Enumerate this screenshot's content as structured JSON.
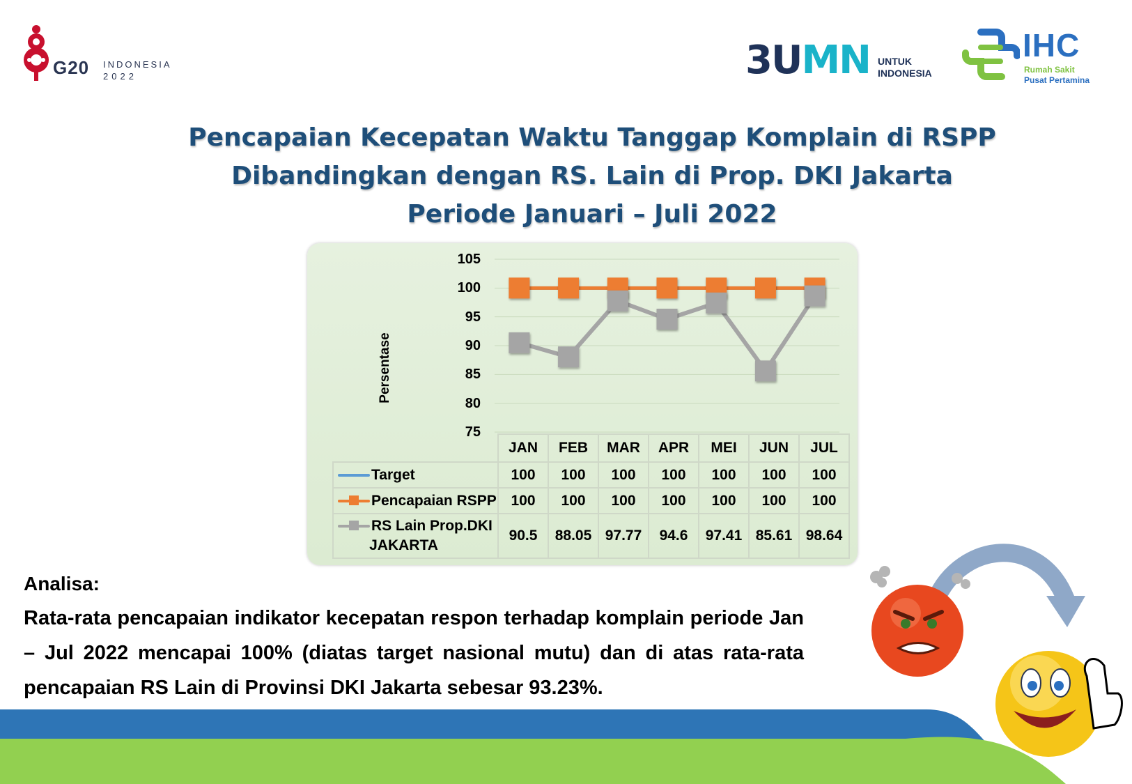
{
  "logos": {
    "g20_main": "G20",
    "g20_line1": "INDONESIA",
    "g20_line2": "2022",
    "bumn_b": "3U",
    "bumn_mn": "MN",
    "bumn_tag1": "UNTUK",
    "bumn_tag2": "INDONESIA",
    "ihc_name": "IHC",
    "ihc_sub1": "Rumah Sakit",
    "ihc_sub2": "Pusat Pertamina"
  },
  "title": {
    "line1": "Pencapaian Kecepatan Waktu Tanggap Komplain di RSPP",
    "line2": "Dibandingkan dengan RS. Lain di Prop. DKI Jakarta",
    "line3": "Periode Januari – Juli 2022"
  },
  "chart_data": {
    "type": "line",
    "title": "",
    "xlabel": "",
    "ylabel": "Persentase",
    "ylim": [
      75,
      105
    ],
    "yticks": [
      "105",
      "100",
      "95",
      "90",
      "85",
      "80",
      "75"
    ],
    "grid": true,
    "legend": "data-table",
    "categories": [
      "JAN",
      "FEB",
      "MAR",
      "APR",
      "MEI",
      "JUN",
      "JUL"
    ],
    "series": [
      {
        "name": "Target",
        "color": "#5b9bd5",
        "marker": "none",
        "values": [
          100,
          100,
          100,
          100,
          100,
          100,
          100
        ],
        "labels": [
          "100",
          "100",
          "100",
          "100",
          "100",
          "100",
          "100"
        ]
      },
      {
        "name": "Pencapaian RSPP",
        "color": "#ed7d31",
        "marker": "square",
        "values": [
          100,
          100,
          100,
          100,
          100,
          100,
          100
        ],
        "labels": [
          "100",
          "100",
          "100",
          "100",
          "100",
          "100",
          "100"
        ]
      },
      {
        "name": "RS Lain Prop.DKI JAKARTA",
        "name_line1": "RS Lain Prop.DKI",
        "name_line2": "JAKARTA",
        "color": "#a5a5a5",
        "marker": "square",
        "values": [
          90.5,
          88.05,
          97.77,
          94.6,
          97.41,
          85.61,
          98.64
        ],
        "labels": [
          "90.5",
          "88.05",
          "97.77",
          "94.6",
          "97.41",
          "85.61",
          "98.64"
        ]
      }
    ]
  },
  "analysis": {
    "heading": "Analisa:",
    "text": "Rata-rata pencapaian indikator kecepatan respon terhadap komplain periode Jan – Jul 2022 mencapai 100% (diatas target nasional mutu) dan di atas rata-rata pencapaian RS Lain di Provinsi DKI Jakarta sebesar 93.23%."
  },
  "colors": {
    "title": "#1e4e79",
    "band_blue": "#2e75b6",
    "band_green": "#92d050"
  }
}
